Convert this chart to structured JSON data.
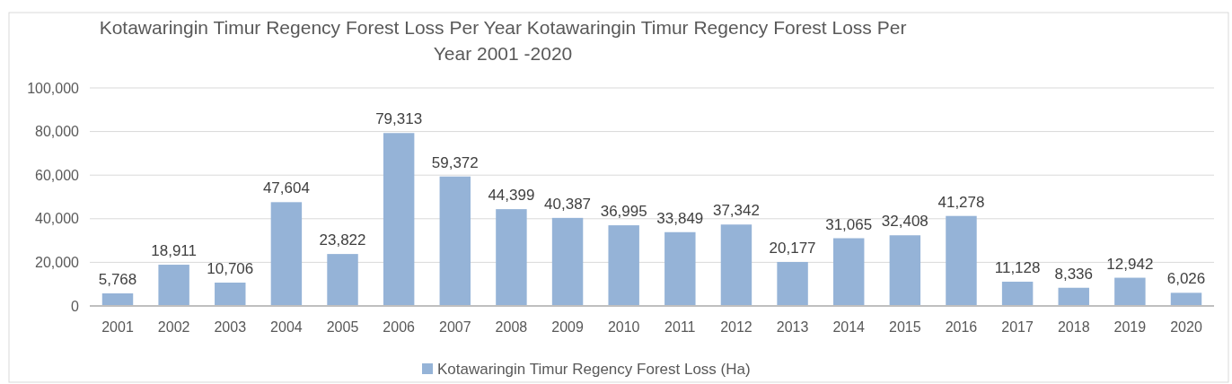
{
  "chart_data": {
    "type": "bar",
    "title": "Kotawaringin Timur Regency Forest Loss Per Year Kotawaringin Timur Regency Forest Loss Per Year 2001 -2020",
    "categories": [
      "2001",
      "2002",
      "2003",
      "2004",
      "2005",
      "2006",
      "2007",
      "2008",
      "2009",
      "2010",
      "2011",
      "2012",
      "2013",
      "2014",
      "2015",
      "2016",
      "2017",
      "2018",
      "2019",
      "2020"
    ],
    "series": [
      {
        "name": "Kotawaringin Timur Regency Forest Loss (Ha)",
        "color": "#95b3d7",
        "values": [
          5768,
          18911,
          10706,
          47604,
          23822,
          79313,
          59372,
          44399,
          40387,
          36995,
          33849,
          37342,
          20177,
          31065,
          32408,
          41278,
          11128,
          8336,
          12942,
          6026
        ],
        "value_labels": [
          "5,768",
          "18,911",
          "10,706",
          "47,604",
          "23,822",
          "79,313",
          "59,372",
          "44,399",
          "40,387",
          "36,995",
          "33,849",
          "37,342",
          "20,177",
          "31,065",
          "32,408",
          "41,278",
          "11,128",
          "8,336",
          "12,942",
          "6,026"
        ]
      }
    ],
    "ylim": [
      0,
      100000
    ],
    "yticks": [
      {
        "value": 0,
        "label": "0"
      },
      {
        "value": 20000,
        "label": "20,000"
      },
      {
        "value": 40000,
        "label": "40,000"
      },
      {
        "value": 60000,
        "label": "60,000"
      },
      {
        "value": 80000,
        "label": "80,000"
      },
      {
        "value": 100000,
        "label": "100,000"
      }
    ],
    "grid": "y",
    "legend": "bottom"
  }
}
